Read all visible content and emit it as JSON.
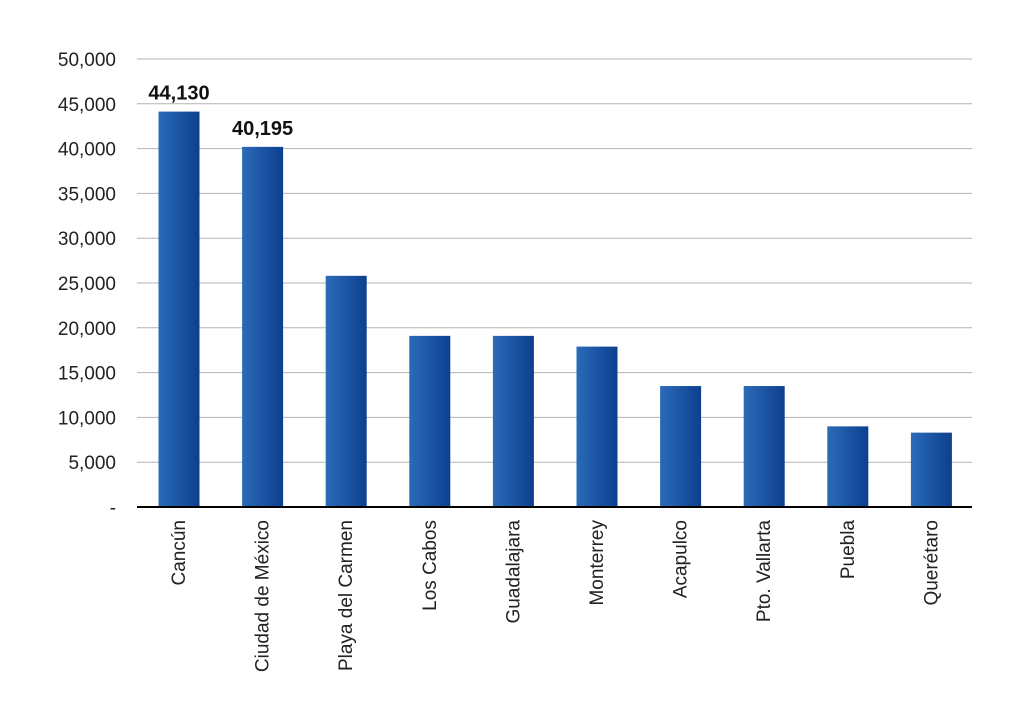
{
  "chart_data": {
    "type": "bar",
    "title": "",
    "xlabel": "",
    "ylabel": "",
    "ylim": [
      0,
      50000
    ],
    "yticks": [
      0,
      5000,
      10000,
      15000,
      20000,
      25000,
      30000,
      35000,
      40000,
      45000,
      50000
    ],
    "ytick_labels": [
      "-",
      "5,000",
      "10,000",
      "15,000",
      "20,000",
      "25,000",
      "30,000",
      "35,000",
      "40,000",
      "45,000",
      "50,000"
    ],
    "grid": true,
    "legend": "none",
    "categories": [
      "Cancún",
      "Ciudad de México",
      "Playa del Carmen",
      "Los Cabos",
      "Guadalajara",
      "Monterrey",
      "Acapulco",
      "Pto. Vallarta",
      "Puebla",
      "Querétaro"
    ],
    "values": [
      44130,
      40195,
      25800,
      19100,
      19100,
      17900,
      13500,
      13500,
      9000,
      8300
    ],
    "data_labels": [
      {
        "index": 0,
        "text": "44,130"
      },
      {
        "index": 1,
        "text": "40,195"
      }
    ],
    "colors": {
      "bar_light": "#2a6bb8",
      "bar_dark": "#0d3f8f",
      "grid": "#b3b3b3",
      "axis": "#000000"
    }
  }
}
